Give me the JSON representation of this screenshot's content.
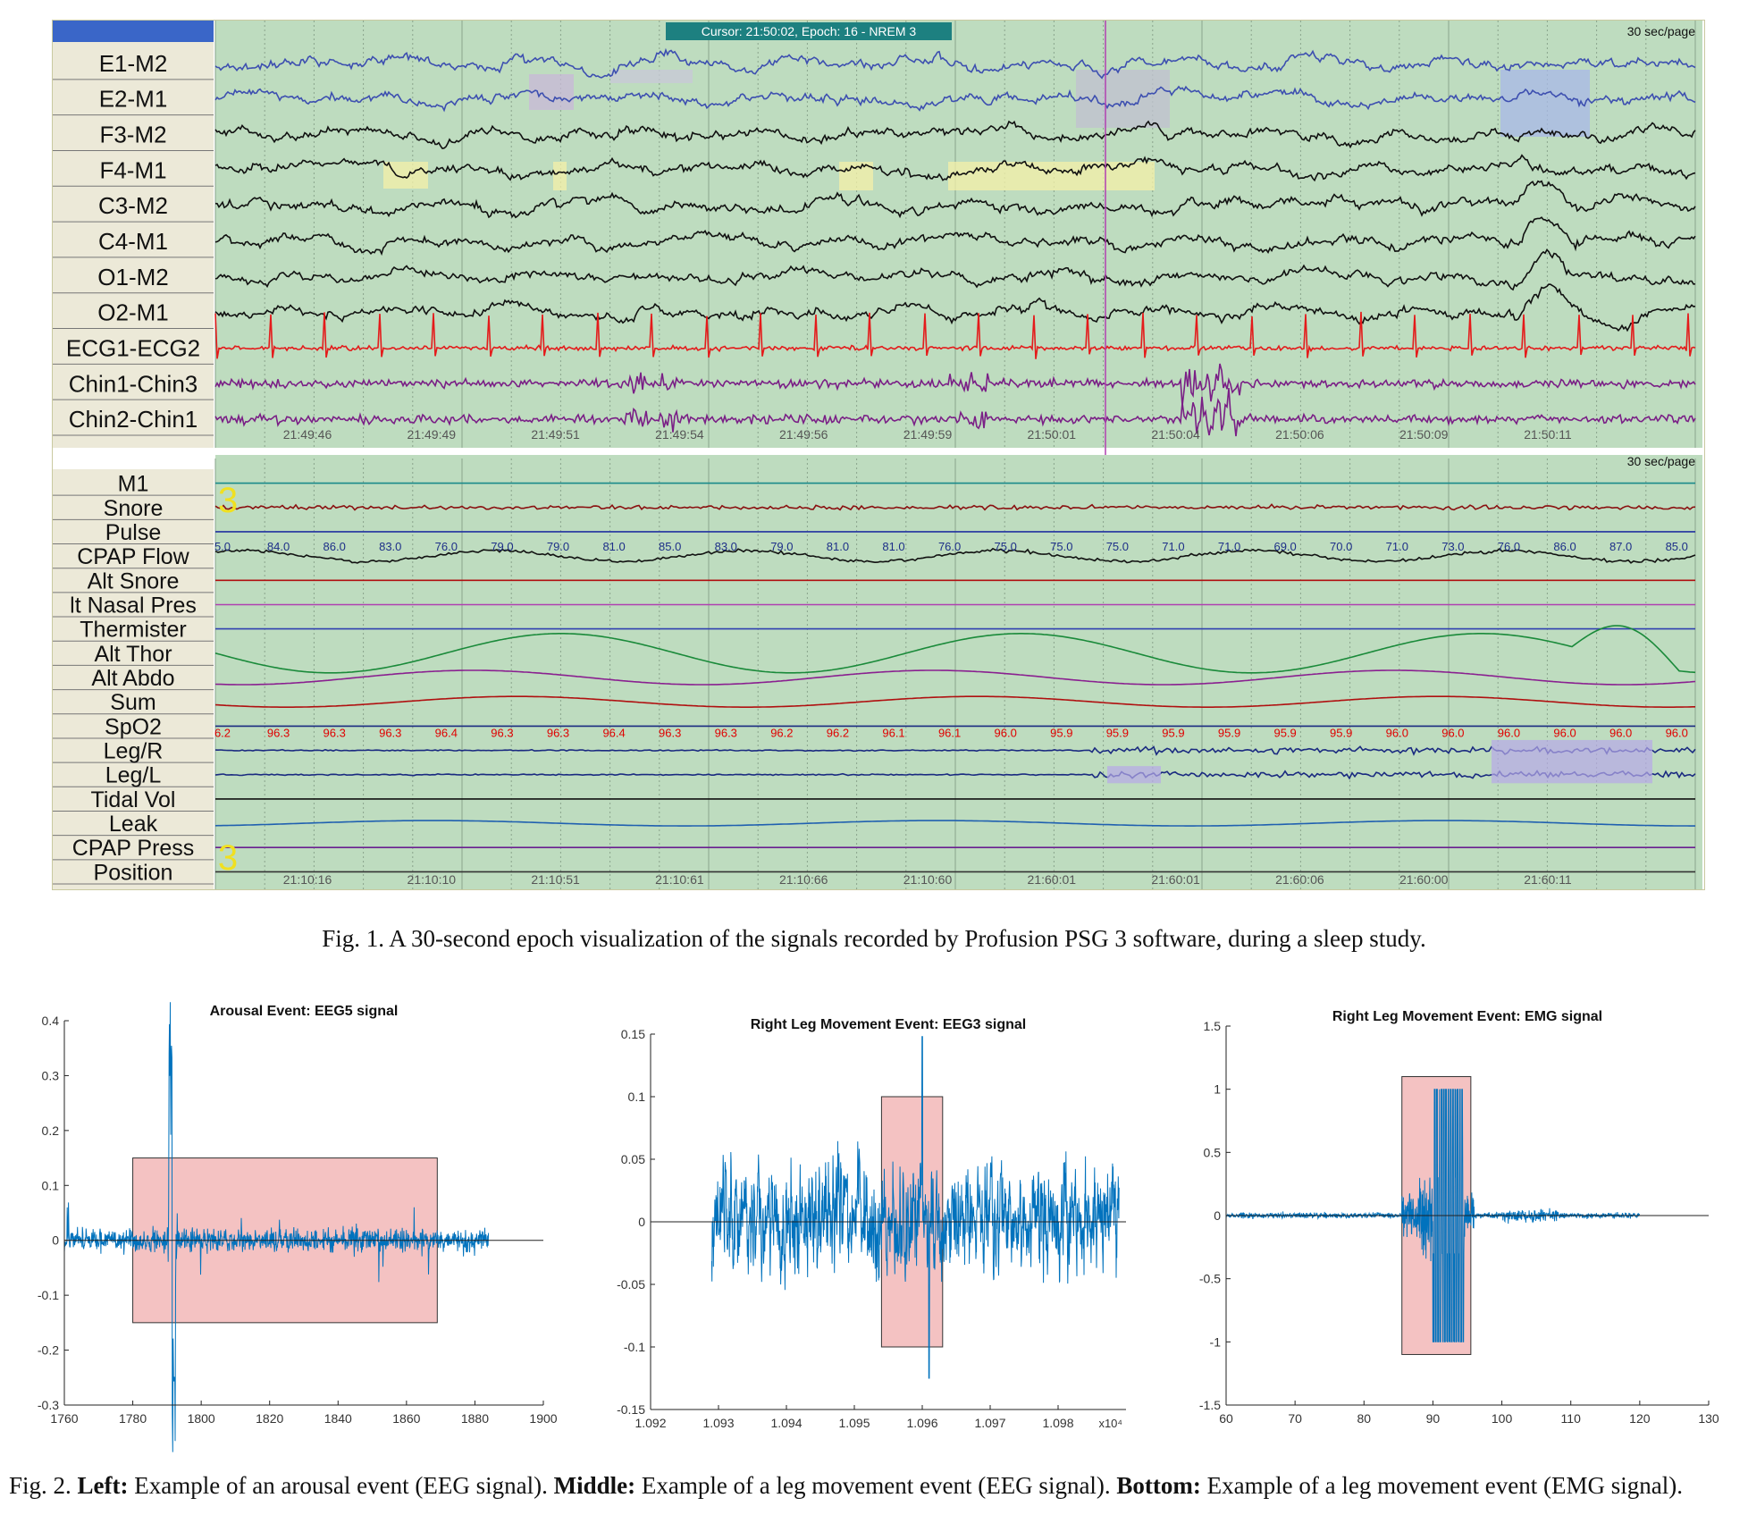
{
  "fig1": {
    "cursor_label": "Cursor: 21:50:02, Epoch: 16 - NREM 3",
    "rate_top": "30 sec/page",
    "rate_bottom": "30 sec/page",
    "top_channels": [
      "E1-M2",
      "E2-M1",
      "F3-M2",
      "F4-M1",
      "C3-M2",
      "C4-M1",
      "O1-M2",
      "O2-M1",
      "ECG1-ECG2",
      "Chin1-Chin3",
      "Chin2-Chin1"
    ],
    "bottom_channels": [
      "M1",
      "Snore",
      "Pulse",
      "CPAP Flow",
      "Alt Snore",
      "lt Nasal Pres",
      "Thermister",
      "Alt Thor",
      "Alt Abdo",
      "Sum",
      "SpO2",
      "Leg/R",
      "Leg/L",
      "Tidal Vol",
      "Leak",
      "CPAP Press",
      "Position"
    ],
    "top_times": [
      "21:49:46",
      "21:49:49",
      "21:49:51",
      "21:49:54",
      "21:49:56",
      "21:49:59",
      "21:50:01",
      "21:50:04",
      "21:50:06",
      "21:50:09",
      "21:50:11"
    ],
    "bottom_times": [
      "21:10:16",
      "21:10:10",
      "21:10:51",
      "21:10:61",
      "21:10:66",
      "21:10:60",
      "21:60:01",
      "21:60:01",
      "21:60:06",
      "21:60:00",
      "21:60:11"
    ],
    "pulse_values": [
      "5.0",
      "84.0",
      "86.0",
      "83.0",
      "76.0",
      "79.0",
      "79.0",
      "81.0",
      "85.0",
      "83.0",
      "79.0",
      "81.0",
      "81.0",
      "76.0",
      "75.0",
      "75.0",
      "75.0",
      "71.0",
      "71.0",
      "69.0",
      "70.0",
      "71.0",
      "73.0",
      "76.0",
      "86.0",
      "87.0",
      "85.0"
    ],
    "spo2_values": [
      "6.2",
      "96.3",
      "96.3",
      "96.3",
      "96.4",
      "96.3",
      "96.3",
      "96.4",
      "96.3",
      "96.3",
      "96.2",
      "96.2",
      "96.1",
      "96.1",
      "96.0",
      "95.9",
      "95.9",
      "95.9",
      "95.9",
      "95.9",
      "95.9",
      "96.0",
      "96.0",
      "96.0",
      "96.0",
      "96.0",
      "96.0"
    ],
    "event_marker": "3",
    "colors": {
      "plot_bg": "#bedcbf",
      "label_bg": "#ece9d8",
      "eog": "#3d4fb0",
      "eeg": "#111111",
      "ecg": "#e41b1b",
      "chin": "#7a1f86",
      "cursor_bg": "#1d8080",
      "spo2_text": "#e00000",
      "pulse_text": "#1d2f88"
    }
  },
  "caption1": "Fig. 1.   A 30-second epoch visualization of the signals recorded by Profusion PSG 3 software, during a sleep study.",
  "caption2": {
    "prefix": "Fig. 2.   ",
    "b1": "Left:",
    "t1": " Example of an arousal event (EEG signal). ",
    "b2": "Middle:",
    "t2": " Example of a leg movement event (EEG signal). ",
    "b3": "Bottom:",
    "t3": " Example of a leg movement event (EMG signal)."
  },
  "chart_data": [
    {
      "type": "line",
      "title": "Arousal Event: EEG5 signal",
      "xlim": [
        1760,
        1900
      ],
      "ylim": [
        -0.3,
        0.4
      ],
      "xticks": [
        1760,
        1780,
        1800,
        1820,
        1840,
        1860,
        1880,
        1900
      ],
      "yticks": [
        -0.3,
        -0.2,
        -0.1,
        0,
        0.1,
        0.2,
        0.3,
        0.4
      ],
      "x_range": [
        1760,
        1884
      ],
      "event_box": {
        "x": [
          1780,
          1869
        ],
        "y": [
          -0.15,
          0.15
        ]
      },
      "peaks": [
        {
          "x": 1791,
          "y": 0.35
        },
        {
          "x": 1792,
          "y": -0.26
        }
      ],
      "series_color": "#0072bd"
    },
    {
      "type": "line",
      "title": "Right Leg Movement Event: EEG3 signal",
      "xlim": [
        1.092,
        1.099
      ],
      "ylim": [
        -0.15,
        0.15
      ],
      "xticks": [
        1.092,
        1.093,
        1.094,
        1.095,
        1.096,
        1.097,
        1.098
      ],
      "yticks": [
        -0.15,
        -0.1,
        -0.05,
        0,
        0.05,
        0.1,
        0.15
      ],
      "x_multiplier": "x10⁴",
      "x_range": [
        1.0929,
        1.0989
      ],
      "event_box": {
        "x": [
          1.0954,
          1.0963
        ],
        "y": [
          -0.1,
          0.1
        ]
      },
      "peaks": [
        {
          "x": 1.096,
          "y": 0.148
        },
        {
          "x": 1.0961,
          "y": -0.125
        }
      ],
      "series_color": "#0072bd"
    },
    {
      "type": "line",
      "title": "Right Leg Movement Event: EMG signal",
      "xlim": [
        60,
        130
      ],
      "ylim": [
        -1.5,
        1.5
      ],
      "xticks": [
        60,
        70,
        80,
        90,
        100,
        110,
        120,
        130
      ],
      "yticks": [
        -1.5,
        -1,
        -0.5,
        0,
        0.5,
        1,
        1.5
      ],
      "x_range": [
        60,
        120
      ],
      "event_box": {
        "x": [
          85.5,
          95.5
        ],
        "y": [
          -1.1,
          1.1
        ]
      },
      "burst": {
        "x": [
          90,
          94
        ],
        "y": [
          -1,
          1
        ]
      },
      "series_color": "#0072bd"
    }
  ]
}
